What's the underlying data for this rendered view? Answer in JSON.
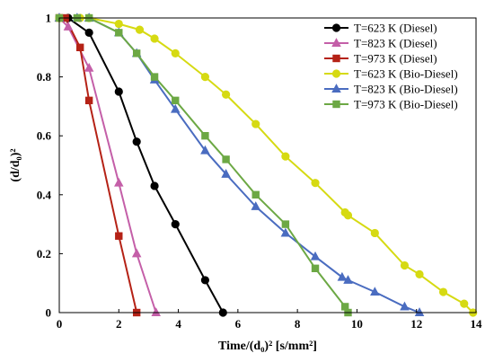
{
  "chart_data": {
    "type": "line",
    "xlim": [
      0,
      14
    ],
    "ylim": [
      0,
      1
    ],
    "xticks": [
      "0",
      "2",
      "4",
      "6",
      "8",
      "10",
      "12",
      "14"
    ],
    "yticks": [
      "0",
      "0.2",
      "0.4",
      "0.6",
      "0.8",
      "1"
    ],
    "xlabel": "Time/(d₀)² [s/mm²]",
    "ylabel": "(d/d₀)²",
    "legend_position": "top-right",
    "grid": false,
    "series": [
      {
        "name": "T=623 K (Diesel)",
        "color": "#000000",
        "marker": "circle",
        "x": [
          0,
          0.3,
          1.0,
          2.0,
          2.6,
          3.2,
          3.9,
          4.9,
          5.5
        ],
        "y": [
          1,
          1,
          0.95,
          0.75,
          0.58,
          0.43,
          0.3,
          0.11,
          0
        ]
      },
      {
        "name": "T=823 K (Diesel)",
        "color": "#c45fa8",
        "marker": "triangle",
        "x": [
          0,
          0.3,
          1.0,
          2.0,
          2.6,
          3.25
        ],
        "y": [
          1,
          0.97,
          0.83,
          0.44,
          0.2,
          0
        ]
      },
      {
        "name": "T=973 K (Diesel)",
        "color": "#b52216",
        "marker": "square",
        "x": [
          0,
          0.2,
          0.7,
          1.0,
          2.0,
          2.6
        ],
        "y": [
          1,
          1,
          0.9,
          0.72,
          0.26,
          0
        ]
      },
      {
        "name": "T=623 K (Bio-Diesel)",
        "color": "#d6da12",
        "marker": "circle",
        "x": [
          0,
          0.7,
          1.0,
          2.0,
          2.7,
          3.2,
          3.9,
          4.9,
          5.6,
          6.6,
          7.6,
          8.6,
          9.6,
          9.7,
          10.6,
          11.6,
          12.1,
          12.9,
          13.6,
          13.9
        ],
        "y": [
          1,
          1,
          1,
          0.98,
          0.96,
          0.93,
          0.88,
          0.8,
          0.74,
          0.64,
          0.53,
          0.44,
          0.34,
          0.33,
          0.27,
          0.16,
          0.13,
          0.07,
          0.03,
          0
        ]
      },
      {
        "name": "T=823 K (Bio-Diesel)",
        "color": "#4a6cc0",
        "marker": "triangle",
        "x": [
          0,
          0.6,
          1.0,
          2.0,
          2.6,
          3.2,
          3.9,
          4.9,
          5.6,
          6.6,
          7.6,
          8.6,
          9.5,
          9.7,
          10.6,
          11.6,
          12.1
        ],
        "y": [
          1,
          1,
          1,
          0.95,
          0.88,
          0.79,
          0.69,
          0.55,
          0.47,
          0.36,
          0.27,
          0.19,
          0.12,
          0.11,
          0.07,
          0.02,
          0
        ]
      },
      {
        "name": "T=973 K (Bio-Diesel)",
        "color": "#6ca844",
        "marker": "square",
        "x": [
          0,
          0.6,
          1.0,
          2.0,
          2.6,
          3.2,
          3.9,
          4.9,
          5.6,
          6.6,
          7.6,
          8.6,
          9.6,
          9.7
        ],
        "y": [
          1,
          1,
          1,
          0.95,
          0.88,
          0.8,
          0.72,
          0.6,
          0.52,
          0.4,
          0.3,
          0.15,
          0.02,
          0
        ]
      }
    ]
  }
}
